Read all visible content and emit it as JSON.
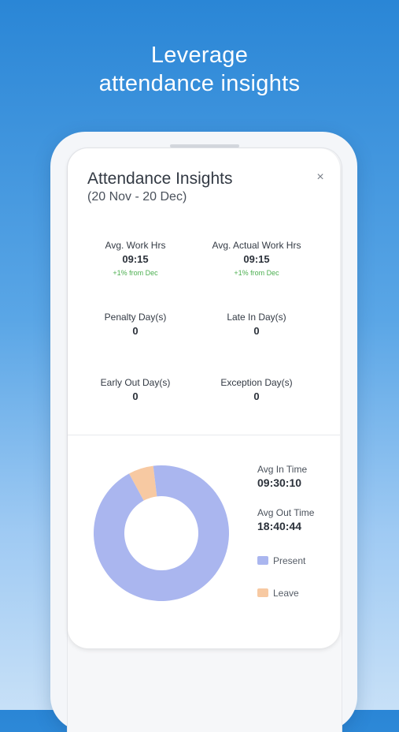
{
  "promo": {
    "line1": "Leverage",
    "line2": "attendance insights"
  },
  "insights": {
    "title": "Attendance Insights",
    "date_range": "(20 Nov - 20 Dec)",
    "close_glyph": "×",
    "stats": [
      {
        "label": "Avg. Work Hrs",
        "value": "09:15",
        "delta": "+1% from Dec"
      },
      {
        "label": "Avg. Actual Work Hrs",
        "value": "09:15",
        "delta": "+1% from Dec"
      },
      {
        "label": "Penalty Day(s)",
        "value": "0"
      },
      {
        "label": "Late In Day(s)",
        "value": "0"
      },
      {
        "label": "Early Out Day(s)",
        "value": "0"
      },
      {
        "label": "Exception Day(s)",
        "value": "0"
      }
    ],
    "avg_in": {
      "label": "Avg In Time",
      "value": "09:30:10"
    },
    "avg_out": {
      "label": "Avg Out Time",
      "value": "18:40:44"
    },
    "legend": [
      {
        "label": "Present",
        "color": "#aab6ef"
      },
      {
        "label": "Leave",
        "color": "#f7c9a2"
      }
    ]
  },
  "chart_data": {
    "type": "pie",
    "categories": [
      "Present",
      "Leave"
    ],
    "values": [
      94,
      6
    ],
    "colors": [
      "#aab6ef",
      "#f7c9a2"
    ],
    "donut": true
  }
}
